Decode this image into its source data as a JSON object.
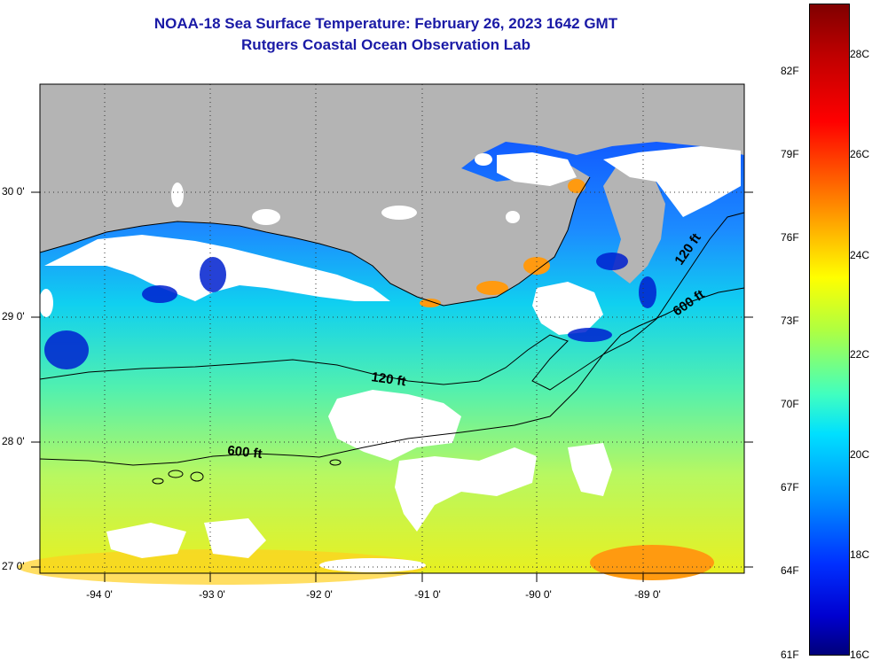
{
  "title": "NOAA-18 Sea Surface Temperature:  February 26, 2023 1642 GMT",
  "subtitle": "Rutgers Coastal Ocean Observation Lab",
  "lat_labels": [
    "30 0'",
    "29 0'",
    "28 0'",
    "27 0'"
  ],
  "lon_labels": [
    "-94 0'",
    "-93 0'",
    "-92 0'",
    "-91 0'",
    "-90 0'",
    "-89 0'"
  ],
  "contour_labels": {
    "shelf_120_west": "120 ft",
    "shelf_600_west": "600 ft",
    "shelf_120_east": "120 ft",
    "shelf_600_east": "600 ft"
  },
  "colorbar": {
    "fahrenheit": [
      "82F",
      "79F",
      "76F",
      "73F",
      "70F",
      "67F",
      "64F",
      "61F"
    ],
    "celsius": [
      "28C",
      "26C",
      "24C",
      "22C",
      "20C",
      "18C",
      "16C"
    ],
    "stops": [
      "#800000",
      "#c00000",
      "#ff0000",
      "#ff6a00",
      "#ffc000",
      "#ffff00",
      "#b0ff40",
      "#40ffc0",
      "#00e0ff",
      "#0090ff",
      "#0030ff",
      "#0000d0",
      "#00007a"
    ]
  },
  "colors": {
    "land": "#b4b4b4",
    "cloud": "#ffffff",
    "title": "#1a1aa6"
  }
}
